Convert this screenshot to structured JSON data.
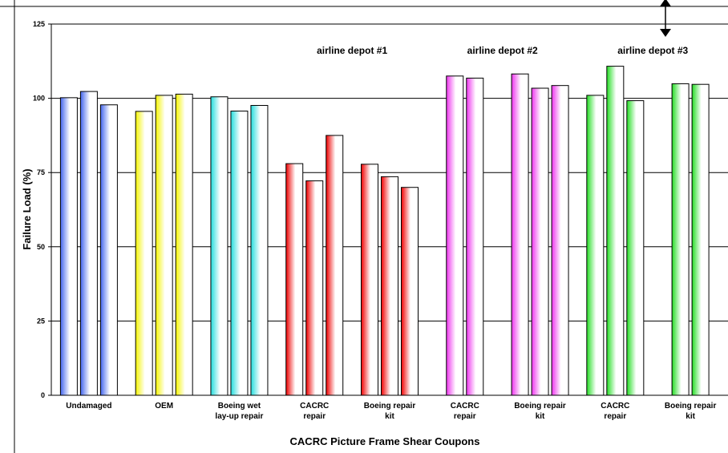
{
  "chart_data": {
    "type": "bar",
    "title": "",
    "xlabel": "CACRC Picture Frame Shear Coupons",
    "ylabel": "Failure Load (%)",
    "ylim": [
      0,
      125
    ],
    "yticks": [
      "0",
      "25",
      "50",
      "75",
      "100",
      "125"
    ],
    "grid": true,
    "groups": [
      {
        "label": [
          "Undamaged"
        ],
        "values": [
          100.2,
          102.3,
          97.8
        ],
        "color": "#4466ee"
      },
      {
        "label": [
          "OEM"
        ],
        "values": [
          95.6,
          101.0,
          101.4
        ],
        "color": "#f4f400"
      },
      {
        "label": [
          "Boeing wet",
          "lay-up repair"
        ],
        "values": [
          100.5,
          95.7,
          97.6
        ],
        "color": "#22dddd"
      },
      {
        "label": [
          "CACRC",
          "repair"
        ],
        "values": [
          78.0,
          72.2,
          87.5
        ],
        "color": "#ee0000"
      },
      {
        "label": [
          "Boeing repair",
          "kit"
        ],
        "values": [
          77.8,
          73.6,
          70.0
        ],
        "color": "#ee0000"
      },
      {
        "label": [
          "CACRC",
          "repair"
        ],
        "values": [
          107.5,
          106.8
        ],
        "color": "#ee33ee"
      },
      {
        "label": [
          "Boeing repair",
          "kit"
        ],
        "values": [
          108.2,
          103.4,
          104.3
        ],
        "color": "#ee33ee"
      },
      {
        "label": [
          "CACRC",
          "repair"
        ],
        "values": [
          101.0,
          110.8,
          99.2
        ],
        "color": "#22dd22"
      },
      {
        "label": [
          "Boeing repair",
          "kit"
        ],
        "values": [
          104.9,
          104.7
        ],
        "color": "#22dd22"
      }
    ],
    "annotations": [
      {
        "text": "airline depot #1"
      },
      {
        "text": "airline depot #2"
      },
      {
        "text": "airline depot #3"
      }
    ]
  }
}
